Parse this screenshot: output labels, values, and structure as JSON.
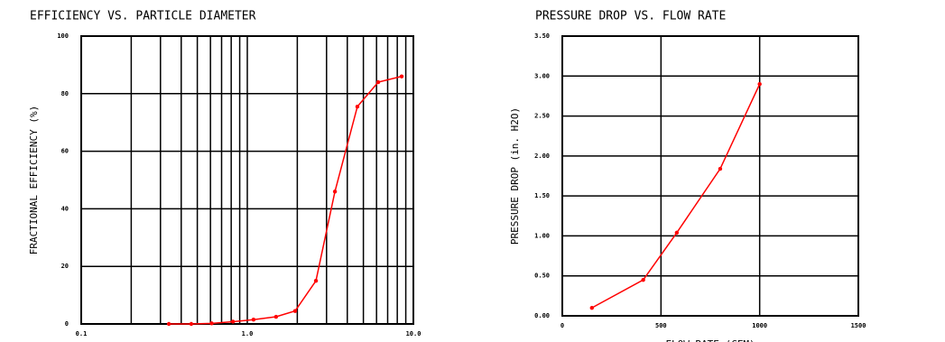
{
  "chart_data": [
    {
      "type": "line",
      "title": "EFFICIENCY VS. PARTICLE DIAMETER",
      "ylabel": "FRACTIONAL EFFICIENCY (%)",
      "xscale": "log",
      "grid": true,
      "color": "#ff0000",
      "x": [
        0.337,
        0.46,
        0.61,
        0.82,
        1.09,
        1.49,
        1.94,
        2.59,
        3.37,
        4.6,
        6.14,
        8.5
      ],
      "values": [
        0,
        0,
        0.2,
        0.8,
        1.5,
        2.5,
        4.5,
        15,
        46,
        75.5,
        84,
        86
      ],
      "xlim": [
        0.1,
        10
      ],
      "xticks": [
        {
          "value": 0.1,
          "label": "0.1"
        },
        {
          "value": 1,
          "label": "1.0"
        },
        {
          "value": 10,
          "label": "10.0"
        }
      ],
      "xgrid": [
        0.2,
        0.3,
        0.4,
        0.5,
        0.6,
        0.7,
        0.8,
        0.9,
        2,
        3,
        4,
        5,
        6,
        7,
        8,
        9
      ],
      "ylim": [
        0,
        100
      ],
      "yticks": [
        0,
        20,
        40,
        60,
        80,
        100
      ]
    },
    {
      "type": "line",
      "title": "PRESSURE DROP VS. FLOW RATE",
      "xlabel": "FLOW RATE (CFM)",
      "ylabel": "PRESSURE DROP (in. H2O)",
      "xscale": "linear",
      "grid": true,
      "color": "#ff0000",
      "x": [
        150,
        410,
        580,
        800,
        1000
      ],
      "values": [
        0.1,
        0.45,
        1.04,
        1.84,
        2.9
      ],
      "xlim": [
        0,
        1500
      ],
      "xticks": [
        0,
        500,
        1000,
        1500
      ],
      "ylim": [
        0,
        3.5
      ],
      "yticks": [
        {
          "value": 0,
          "label": "0.00"
        },
        {
          "value": 0.5,
          "label": "0.50"
        },
        {
          "value": 1,
          "label": "1.00"
        },
        {
          "value": 1.5,
          "label": "1.50"
        },
        {
          "value": 2,
          "label": "2.00"
        },
        {
          "value": 2.5,
          "label": "2.50"
        },
        {
          "value": 3,
          "label": "3.00"
        },
        {
          "value": 3.5,
          "label": "3.50"
        }
      ]
    }
  ]
}
